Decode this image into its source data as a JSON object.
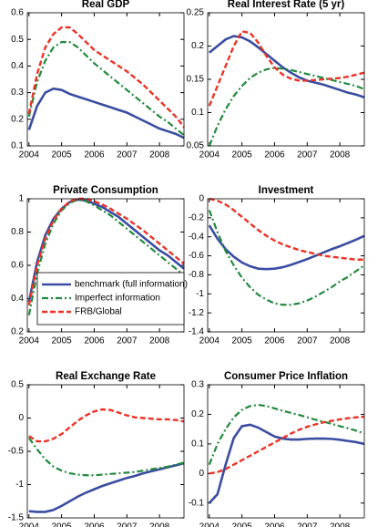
{
  "chart_data": [
    {
      "type": "line",
      "title": "Real GDP",
      "xlim": [
        2003.95,
        2008.75
      ],
      "xticks": [
        2004,
        2005,
        2006,
        2007,
        2008
      ],
      "ylim": [
        0.1,
        0.6
      ],
      "yticks": [
        0.1,
        0.2,
        0.3,
        0.4,
        0.5,
        0.6
      ],
      "x": [
        2004,
        2004.25,
        2004.5,
        2004.75,
        2005,
        2005.25,
        2005.5,
        2005.75,
        2006,
        2006.25,
        2006.5,
        2006.75,
        2007,
        2007.25,
        2007.5,
        2007.75,
        2008,
        2008.25,
        2008.5,
        2008.75
      ],
      "series": [
        {
          "color": "#3a4da0",
          "style": "solid",
          "values": [
            0.16,
            0.25,
            0.3,
            0.315,
            0.31,
            0.295,
            0.285,
            0.275,
            0.265,
            0.255,
            0.245,
            0.235,
            0.225,
            0.21,
            0.195,
            0.18,
            0.165,
            0.155,
            0.145,
            0.13
          ]
        },
        {
          "color": "#218a3c",
          "style": "dashdot",
          "values": [
            0.21,
            0.34,
            0.42,
            0.47,
            0.49,
            0.49,
            0.47,
            0.44,
            0.41,
            0.385,
            0.36,
            0.335,
            0.31,
            0.285,
            0.26,
            0.235,
            0.21,
            0.19,
            0.165,
            0.14
          ]
        },
        {
          "color": "#ea3327",
          "style": "dashed",
          "values": [
            0.22,
            0.37,
            0.47,
            0.52,
            0.545,
            0.545,
            0.52,
            0.49,
            0.46,
            0.44,
            0.42,
            0.4,
            0.38,
            0.355,
            0.33,
            0.3,
            0.27,
            0.24,
            0.21,
            0.17
          ]
        }
      ]
    },
    {
      "type": "line",
      "title": "Real Interest Rate (5 yr)",
      "xlim": [
        2003.95,
        2008.75
      ],
      "xticks": [
        2004,
        2005,
        2006,
        2007,
        2008
      ],
      "ylim": [
        0.05,
        0.25
      ],
      "yticks": [
        0.05,
        0.1,
        0.15,
        0.2,
        0.25
      ],
      "x": [
        2004,
        2004.25,
        2004.5,
        2004.75,
        2005,
        2005.25,
        2005.5,
        2005.75,
        2006,
        2006.25,
        2006.5,
        2006.75,
        2007,
        2007.25,
        2007.5,
        2007.75,
        2008,
        2008.25,
        2008.5,
        2008.75
      ],
      "series": [
        {
          "color": "#3a4da0",
          "style": "solid",
          "values": [
            0.19,
            0.2,
            0.21,
            0.215,
            0.213,
            0.207,
            0.198,
            0.188,
            0.178,
            0.168,
            0.16,
            0.153,
            0.148,
            0.145,
            0.142,
            0.138,
            0.134,
            0.13,
            0.127,
            0.123
          ]
        },
        {
          "color": "#218a3c",
          "style": "dashdot",
          "values": [
            0.05,
            0.08,
            0.105,
            0.125,
            0.14,
            0.152,
            0.16,
            0.165,
            0.167,
            0.166,
            0.164,
            0.161,
            0.158,
            0.155,
            0.152,
            0.149,
            0.146,
            0.143,
            0.14,
            0.135
          ]
        },
        {
          "color": "#ea3327",
          "style": "dashed",
          "values": [
            0.11,
            0.14,
            0.17,
            0.2,
            0.222,
            0.22,
            0.205,
            0.185,
            0.168,
            0.157,
            0.151,
            0.148,
            0.148,
            0.149,
            0.15,
            0.151,
            0.152,
            0.154,
            0.157,
            0.16
          ]
        }
      ]
    },
    {
      "type": "line",
      "title": "Private Consumption",
      "xlim": [
        2003.95,
        2008.75
      ],
      "xticks": [
        2004,
        2005,
        2006,
        2007,
        2008
      ],
      "ylim": [
        0.2,
        1
      ],
      "yticks": [
        0.2,
        0.4,
        0.6,
        0.8,
        1
      ],
      "legend": "lower right",
      "x": [
        2004,
        2004.25,
        2004.5,
        2004.75,
        2005,
        2005.25,
        2005.5,
        2005.75,
        2006,
        2006.25,
        2006.5,
        2006.75,
        2007,
        2007.25,
        2007.5,
        2007.75,
        2008,
        2008.25,
        2008.5,
        2008.75
      ],
      "series": [
        {
          "name": "benchmark (full information)",
          "color": "#3a4da0",
          "style": "solid",
          "values": [
            0.38,
            0.62,
            0.78,
            0.88,
            0.94,
            0.98,
            0.995,
            0.99,
            0.97,
            0.95,
            0.92,
            0.89,
            0.85,
            0.81,
            0.77,
            0.73,
            0.69,
            0.66,
            0.62,
            0.58
          ]
        },
        {
          "name": "Imperfect information",
          "color": "#218a3c",
          "style": "dashdot",
          "values": [
            0.3,
            0.55,
            0.73,
            0.85,
            0.93,
            0.975,
            0.995,
            0.985,
            0.96,
            0.93,
            0.9,
            0.86,
            0.82,
            0.78,
            0.74,
            0.7,
            0.66,
            0.62,
            0.58,
            0.54
          ]
        },
        {
          "name": "FRB/Global",
          "color": "#ea3327",
          "style": "dashed",
          "values": [
            0.36,
            0.6,
            0.76,
            0.87,
            0.94,
            0.985,
            1.0,
            1.0,
            0.985,
            0.965,
            0.94,
            0.91,
            0.88,
            0.845,
            0.81,
            0.77,
            0.73,
            0.69,
            0.65,
            0.61
          ]
        }
      ]
    },
    {
      "type": "line",
      "title": "Investment",
      "xlim": [
        2003.95,
        2008.75
      ],
      "xticks": [
        2004,
        2005,
        2006,
        2007,
        2008
      ],
      "ylim": [
        -1.4,
        0
      ],
      "yticks": [
        -1.4,
        -1.2,
        -1,
        -0.8,
        -0.6,
        -0.4,
        -0.2,
        0
      ],
      "x": [
        2004,
        2004.25,
        2004.5,
        2004.75,
        2005,
        2005.25,
        2005.5,
        2005.75,
        2006,
        2006.25,
        2006.5,
        2006.75,
        2007,
        2007.25,
        2007.5,
        2007.75,
        2008,
        2008.25,
        2008.5,
        2008.75
      ],
      "series": [
        {
          "color": "#3a4da0",
          "style": "solid",
          "values": [
            -0.28,
            -0.42,
            -0.53,
            -0.61,
            -0.67,
            -0.71,
            -0.735,
            -0.74,
            -0.735,
            -0.72,
            -0.695,
            -0.665,
            -0.635,
            -0.6,
            -0.565,
            -0.53,
            -0.5,
            -0.465,
            -0.43,
            -0.39
          ]
        },
        {
          "color": "#218a3c",
          "style": "dashdot",
          "values": [
            -0.12,
            -0.35,
            -0.55,
            -0.7,
            -0.83,
            -0.93,
            -1.01,
            -1.06,
            -1.1,
            -1.115,
            -1.115,
            -1.1,
            -1.07,
            -1.03,
            -0.98,
            -0.93,
            -0.87,
            -0.82,
            -0.76,
            -0.7
          ]
        },
        {
          "color": "#ea3327",
          "style": "dashed",
          "values": [
            0,
            -0.02,
            -0.06,
            -0.12,
            -0.19,
            -0.26,
            -0.33,
            -0.39,
            -0.44,
            -0.48,
            -0.51,
            -0.54,
            -0.56,
            -0.58,
            -0.6,
            -0.61,
            -0.62,
            -0.63,
            -0.64,
            -0.64
          ]
        }
      ]
    },
    {
      "type": "line",
      "title": "Real Exchange Rate",
      "xlim": [
        2003.95,
        2008.75
      ],
      "xticks": [
        2004,
        2005,
        2006,
        2007,
        2008
      ],
      "ylim": [
        -1.5,
        0.5
      ],
      "yticks": [
        -1.5,
        -1,
        -0.5,
        0,
        0.5
      ],
      "x": [
        2004,
        2004.25,
        2004.5,
        2004.75,
        2005,
        2005.25,
        2005.5,
        2005.75,
        2006,
        2006.25,
        2006.5,
        2006.75,
        2007,
        2007.25,
        2007.5,
        2007.75,
        2008,
        2008.25,
        2008.5,
        2008.75
      ],
      "series": [
        {
          "color": "#3a4da0",
          "style": "solid",
          "values": [
            -1.4,
            -1.41,
            -1.41,
            -1.38,
            -1.32,
            -1.25,
            -1.18,
            -1.12,
            -1.07,
            -1.02,
            -0.98,
            -0.94,
            -0.9,
            -0.87,
            -0.83,
            -0.8,
            -0.77,
            -0.74,
            -0.71,
            -0.68
          ]
        },
        {
          "color": "#218a3c",
          "style": "dashdot",
          "values": [
            -0.3,
            -0.47,
            -0.62,
            -0.73,
            -0.79,
            -0.83,
            -0.85,
            -0.86,
            -0.86,
            -0.85,
            -0.84,
            -0.83,
            -0.82,
            -0.81,
            -0.79,
            -0.77,
            -0.75,
            -0.73,
            -0.7,
            -0.67
          ]
        },
        {
          "color": "#ea3327",
          "style": "dashed",
          "values": [
            -0.27,
            -0.35,
            -0.35,
            -0.31,
            -0.24,
            -0.14,
            -0.04,
            0.04,
            0.1,
            0.13,
            0.12,
            0.08,
            0.04,
            0.01,
            0,
            -0.01,
            -0.02,
            -0.02,
            -0.03,
            -0.05
          ]
        }
      ]
    },
    {
      "type": "line",
      "title": "Consumer Price Inflation",
      "xlim": [
        2003.95,
        2008.75
      ],
      "xticks": [
        2004,
        2005,
        2006,
        2007,
        2008
      ],
      "ylim": [
        -0.15,
        0.3
      ],
      "yticks": [
        -0.1,
        0,
        0.1,
        0.2,
        0.3
      ],
      "x": [
        2004,
        2004.25,
        2004.5,
        2004.75,
        2005,
        2005.25,
        2005.5,
        2005.75,
        2006,
        2006.25,
        2006.5,
        2006.75,
        2007,
        2007.25,
        2007.5,
        2007.75,
        2008,
        2008.25,
        2008.5,
        2008.75
      ],
      "series": [
        {
          "color": "#3a4da0",
          "style": "solid",
          "values": [
            -0.1,
            -0.07,
            0.03,
            0.12,
            0.16,
            0.165,
            0.155,
            0.14,
            0.125,
            0.118,
            0.115,
            0.115,
            0.117,
            0.118,
            0.118,
            0.117,
            0.114,
            0.11,
            0.106,
            0.1
          ]
        },
        {
          "color": "#218a3c",
          "style": "dashdot",
          "values": [
            0.03,
            0.1,
            0.15,
            0.19,
            0.215,
            0.228,
            0.232,
            0.228,
            0.22,
            0.212,
            0.205,
            0.198,
            0.19,
            0.182,
            0.175,
            0.168,
            0.16,
            0.153,
            0.145,
            0.135
          ]
        },
        {
          "color": "#ea3327",
          "style": "dashed",
          "values": [
            0,
            0.005,
            0.015,
            0.03,
            0.045,
            0.06,
            0.075,
            0.09,
            0.105,
            0.12,
            0.135,
            0.148,
            0.158,
            0.166,
            0.173,
            0.178,
            0.183,
            0.187,
            0.19,
            0.192
          ]
        }
      ]
    }
  ]
}
